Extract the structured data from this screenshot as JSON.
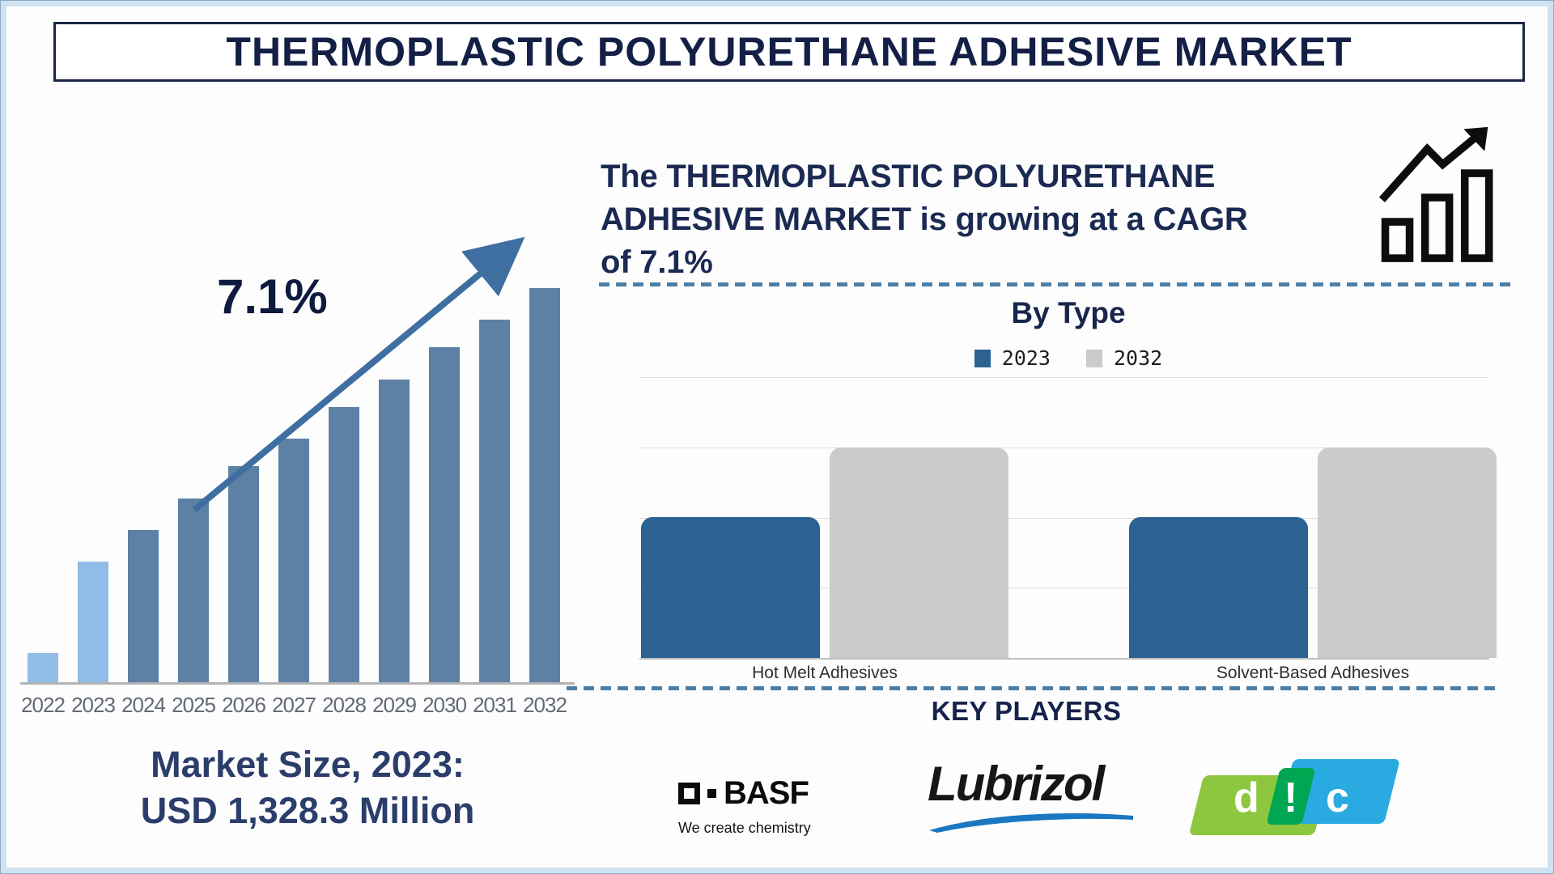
{
  "page_title": "THERMOPLASTIC POLYURETHANE ADHESIVE MARKET",
  "market_size": {
    "line1": "Market Size, 2023:",
    "line2": "USD 1,328.3 Million"
  },
  "growth_note": {
    "lines": [
      "The THERMOPLASTIC POLYURETHANE",
      "ADHESIVE MARKET is growing at a CAGR",
      "of 7.1%"
    ]
  },
  "key_players": {
    "title": "KEY PLAYERS",
    "companies": [
      "BASF",
      "Lubrizol",
      "DIC"
    ],
    "basf": {
      "name": "BASF",
      "tagline": "We create chemistry"
    },
    "lubrizol": {
      "name": "Lubrizol"
    },
    "dic": {
      "letters": [
        "d",
        "!",
        "c"
      ],
      "green": "#8dc63f",
      "cyan": "#29abe2",
      "dark_green": "#00a651"
    }
  },
  "colors": {
    "navy_text": "#1b2a52",
    "trend_bar_default": "#5d81a5",
    "trend_bar_highlight": "#90bde6",
    "arrow": "#3e6fa0",
    "bytype_2023_blue": "#2b6291",
    "bytype_2032_gray": "#cbcbcb",
    "dashed_separator": "#4d7fa6",
    "frame_light_blue": "#cfe2f2"
  },
  "chart_data": [
    {
      "id": "market-trend",
      "type": "bar",
      "title": "Thermoplastic Polyurethane Adhesive Market size trend",
      "categories": [
        "2022",
        "2023",
        "2024",
        "2025",
        "2026",
        "2027",
        "2028",
        "2029",
        "2030",
        "2031",
        "2032"
      ],
      "values": [
        8,
        31,
        39,
        47,
        55,
        62,
        70,
        77,
        85,
        92,
        100
      ],
      "units": "relative bar height, % of 2032 bar (no value axis shown)",
      "annotations": {
        "cagr_label": "7.1%",
        "market_size_2023": "USD 1,328.3 Million"
      },
      "bar_colors": {
        "default": "#5d81a5",
        "highlight": "#90bde6",
        "highlight_categories": [
          "2022",
          "2023"
        ]
      },
      "grid": false,
      "value_axis": "none"
    },
    {
      "id": "by-type",
      "type": "grouped-bar",
      "title": "By Type",
      "categories": [
        "Hot Melt Adhesives",
        "Solvent-Based Adhesives"
      ],
      "series": [
        {
          "name": "2023",
          "color": "#2b6291",
          "values": [
            2,
            2
          ]
        },
        {
          "name": "2032",
          "color": "#cbcbcb",
          "values": [
            3,
            3
          ]
        }
      ],
      "ylim": [
        0,
        4
      ],
      "units": "relative gridline units (no axis tick labels shown)",
      "grid": true,
      "legend_position": "top"
    }
  ]
}
